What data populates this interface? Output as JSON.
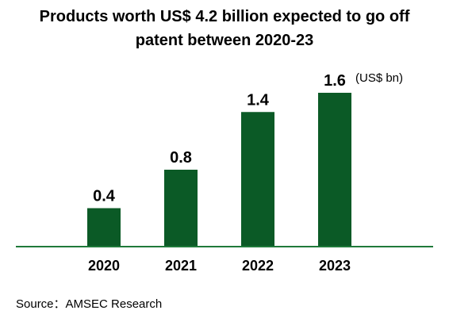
{
  "title_line1": "Products worth US$ 4.2 billion expected to go off",
  "title_line2": "patent between 2020-23",
  "unit_label": "(US$ bn)",
  "source": "Source：AMSEC Research",
  "colors": {
    "bar": "#0b5a26",
    "axis": "#1f7a3a"
  },
  "chart_data": {
    "type": "bar",
    "title": "Products worth US$ 4.2 billion expected to go off patent between 2020-23",
    "categories": [
      "2020",
      "2021",
      "2022",
      "2023"
    ],
    "values": [
      0.4,
      0.8,
      1.4,
      1.6
    ],
    "value_labels": [
      "0.4",
      "0.8",
      "1.4",
      "1.6"
    ],
    "ylabel": "(US$ bn)",
    "xlabel": "",
    "ylim": [
      0,
      1.6
    ],
    "grid": false,
    "legend": "none"
  }
}
